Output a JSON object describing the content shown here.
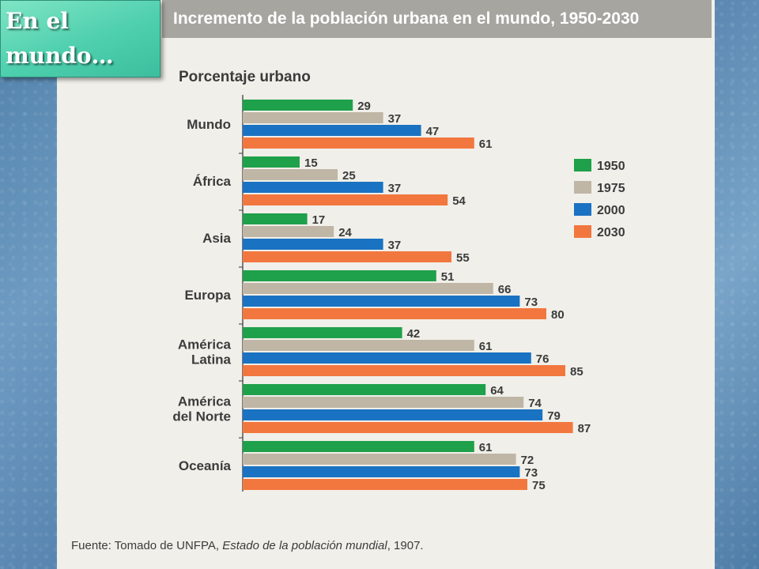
{
  "slide": {
    "title": "En el mundo…"
  },
  "chart_data": {
    "type": "bar",
    "orientation": "horizontal",
    "title": "Incremento de la población urbana en el mundo, 1950-2030",
    "ylabel": "Porcentaje urbano",
    "source_prefix": "Fuente: Tomado de UNFPA, ",
    "source_italic": "Estado de la población mundial",
    "source_suffix": ", 1907.",
    "categories": [
      [
        "Mundo"
      ],
      [
        "África"
      ],
      [
        "Asia"
      ],
      [
        "Europa"
      ],
      [
        "América",
        "Latina"
      ],
      [
        "América",
        "del Norte"
      ],
      [
        "Oceanía"
      ]
    ],
    "series": [
      {
        "name": "1950",
        "color": "#1fa04a",
        "values": [
          29,
          15,
          17,
          51,
          42,
          64,
          61
        ]
      },
      {
        "name": "1975",
        "color": "#bfb6a6",
        "values": [
          37,
          25,
          24,
          66,
          61,
          74,
          72
        ]
      },
      {
        "name": "2000",
        "color": "#1a72c2",
        "values": [
          47,
          37,
          37,
          73,
          76,
          79,
          73
        ]
      },
      {
        "name": "2030",
        "color": "#f2773f",
        "values": [
          61,
          54,
          55,
          80,
          85,
          87,
          75
        ]
      }
    ],
    "xlim": [
      0,
      100
    ],
    "legend": "right",
    "grid": false
  }
}
